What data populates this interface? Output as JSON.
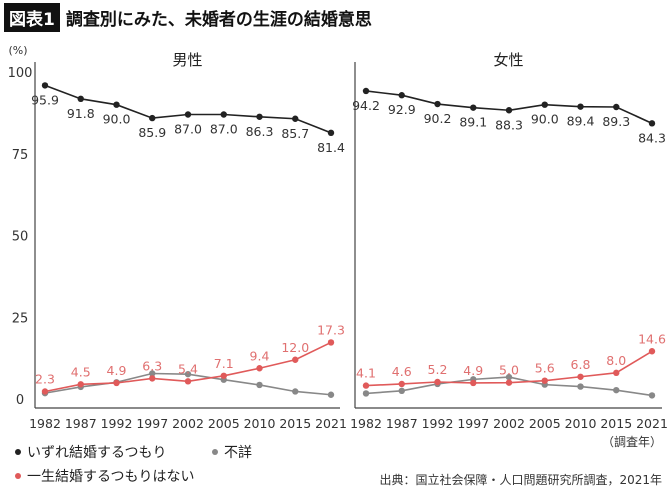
{
  "header": {
    "badge": "図表1",
    "title": "調査別にみた、未婚者の生涯の結婚意思"
  },
  "chart_data": [
    {
      "type": "line",
      "title": "男性",
      "ylabel": "(%)",
      "ylim": [
        0,
        100
      ],
      "yticks": [
        0,
        25,
        50,
        75,
        100
      ],
      "categories": [
        "1982",
        "1987",
        "1992",
        "1997",
        "2002",
        "2005",
        "2010",
        "2015",
        "2021"
      ],
      "series": [
        {
          "name": "いずれ結婚するつもり",
          "color": "#222222",
          "values": [
            95.9,
            91.8,
            90.0,
            85.9,
            87.0,
            87.0,
            86.3,
            85.7,
            81.4
          ],
          "labeled": true
        },
        {
          "name": "不詳",
          "color": "#888888",
          "values": [
            1.8,
            3.7,
            5.1,
            7.8,
            7.6,
            5.9,
            4.3,
            2.3,
            1.3
          ],
          "labeled": false
        },
        {
          "name": "一生結婚するつもりはない",
          "color": "#e05a5a",
          "values": [
            2.3,
            4.5,
            4.9,
            6.3,
            5.4,
            7.1,
            9.4,
            12.0,
            17.3
          ],
          "labeled": true
        }
      ]
    },
    {
      "type": "line",
      "title": "女性",
      "ylim": [
        0,
        100
      ],
      "categories": [
        "1982",
        "1987",
        "1992",
        "1997",
        "2002",
        "2005",
        "2010",
        "2015",
        "2021"
      ],
      "series": [
        {
          "name": "いずれ結婚するつもり",
          "color": "#222222",
          "values": [
            94.2,
            92.9,
            90.2,
            89.1,
            88.3,
            90.0,
            89.4,
            89.3,
            84.3
          ],
          "labeled": true
        },
        {
          "name": "不詳",
          "color": "#888888",
          "values": [
            1.7,
            2.5,
            4.6,
            6.0,
            6.7,
            4.4,
            3.8,
            2.7,
            1.1
          ],
          "labeled": false
        },
        {
          "name": "一生結婚するつもりはない",
          "color": "#e05a5a",
          "values": [
            4.1,
            4.6,
            5.2,
            4.9,
            5.0,
            5.6,
            6.8,
            8.0,
            14.6
          ],
          "labeled": true
        }
      ]
    }
  ],
  "xunit": "（調査年）",
  "source": "出典：国立社会保障・人口問題研究所調査，2021年"
}
